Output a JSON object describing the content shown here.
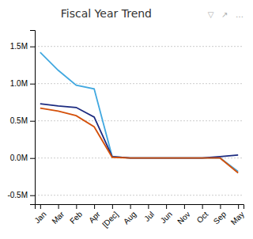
{
  "chart_data": {
    "type": "line",
    "title": "Fiscal Year Trend",
    "annotations": [
      "▽   ↗   …"
    ],
    "categories": [
      "Jan",
      "Mar",
      "Feb",
      "Apr",
      "[Dec]",
      "Aug",
      "Jul",
      "Jun",
      "Nov",
      "Oct",
      "Sep",
      "May"
    ],
    "series": [
      {
        "color": "#41A8E0",
        "values": [
          1.42,
          1.18,
          0.98,
          0.93,
          0.02,
          0.0,
          0.0,
          0.0,
          0.0,
          0.0,
          0.0,
          -0.18
        ]
      },
      {
        "color": "#1C2B80",
        "values": [
          0.73,
          0.7,
          0.68,
          0.55,
          0.02,
          0.0,
          0.0,
          0.0,
          0.0,
          0.0,
          0.02,
          0.04
        ]
      },
      {
        "color": "#D4500A",
        "values": [
          0.67,
          0.63,
          0.57,
          0.42,
          0.01,
          0.0,
          0.0,
          0.0,
          0.0,
          0.0,
          0.0,
          -0.2
        ]
      }
    ],
    "ylim": [
      -0.62,
      1.72
    ],
    "yticks": [
      {
        "value": -0.5,
        "label": "-0.5M"
      },
      {
        "value": 0.0,
        "label": "0.0M"
      },
      {
        "value": 0.5,
        "label": "0.5M"
      },
      {
        "value": 1.0,
        "label": "1.0M"
      },
      {
        "value": 1.5,
        "label": "1.5M"
      }
    ],
    "grid": true
  }
}
